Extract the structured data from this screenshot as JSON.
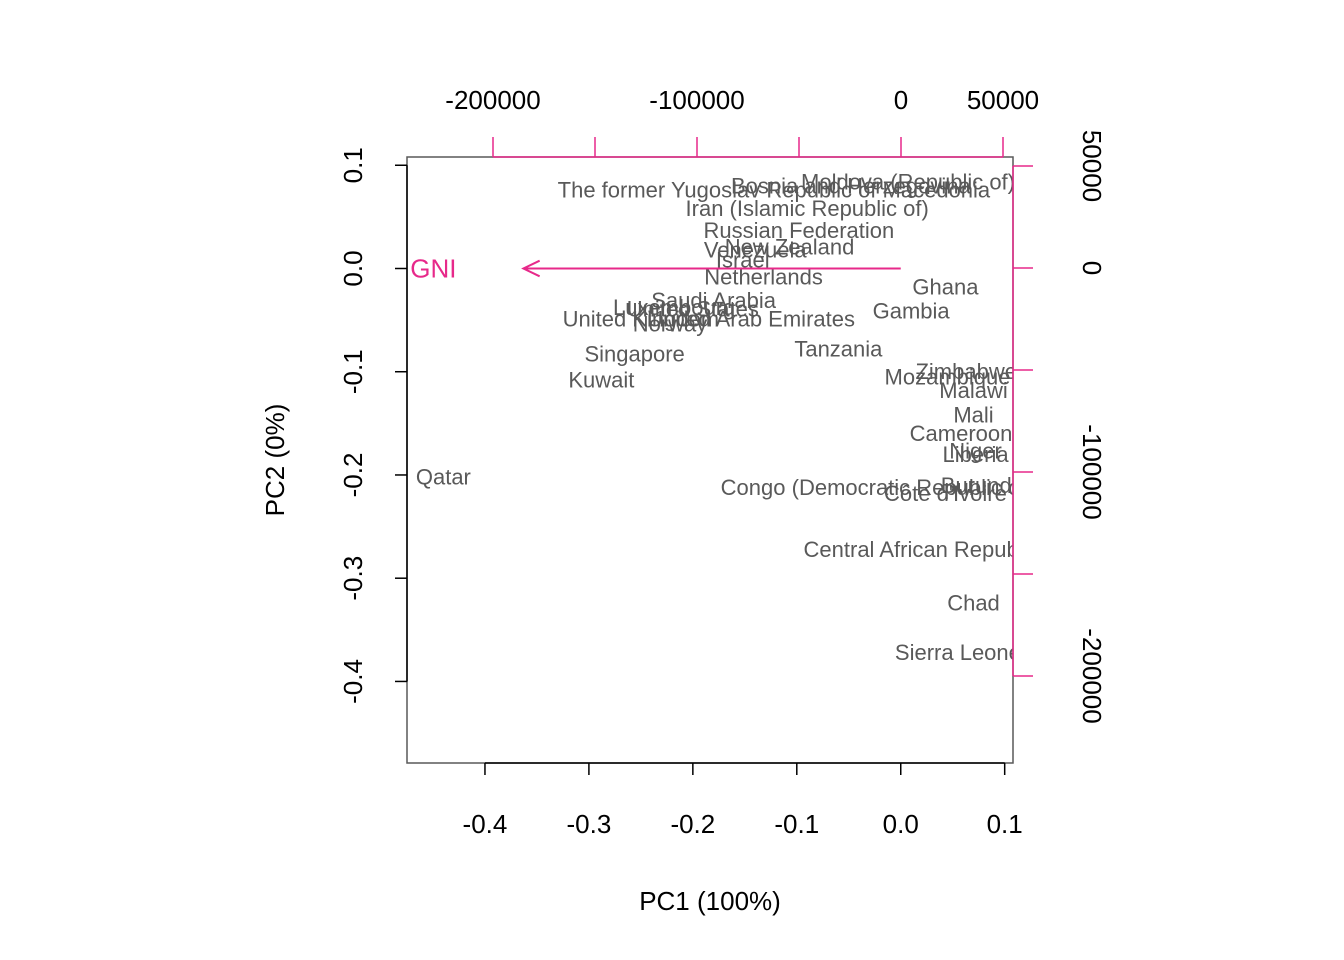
{
  "chart_data": {
    "type": "biplot",
    "xlabel": "PC1 (100%)",
    "ylabel": "PC2 (0%)",
    "xlim": [
      -0.475,
      0.108
    ],
    "ylim": [
      -0.479,
      0.108
    ],
    "x_ticks": [
      -0.4,
      -0.3,
      -0.2,
      -0.1,
      0.0,
      0.1
    ],
    "x_tick_labels": [
      "-0.4",
      "-0.3",
      "-0.2",
      "-0.1",
      "0.0",
      "0.1"
    ],
    "y_ticks": [
      -0.4,
      -0.3,
      -0.2,
      -0.1,
      0.0,
      0.1
    ],
    "y_tick_labels": [
      "-0.4",
      "-0.3",
      "-0.2",
      "-0.1",
      "0.0",
      "0.1"
    ],
    "top_axis": {
      "ticks": [
        -200000,
        -150000,
        -100000,
        -50000,
        0,
        50000
      ],
      "tick_labels": [
        "-200000",
        "",
        "-100000",
        "",
        "0",
        "50000"
      ]
    },
    "right_axis": {
      "ticks": [
        50000,
        0,
        -50000,
        -100000,
        -150000,
        -200000
      ],
      "tick_labels": [
        "50000",
        "0",
        "",
        "-100000",
        "",
        "-200000"
      ]
    },
    "colors": {
      "observations": "#595959",
      "variables": "#e7298a",
      "axes": "#000000"
    },
    "variables": [
      {
        "label": "GNI",
        "x": -0.363,
        "y": 0.0
      }
    ],
    "observations": [
      {
        "label": "Qatar",
        "x": -0.44,
        "y": -0.202
      },
      {
        "label": "Kuwait",
        "x": -0.288,
        "y": -0.108
      },
      {
        "label": "Singapore",
        "x": -0.256,
        "y": -0.083
      },
      {
        "label": "United Kingdom",
        "x": -0.25,
        "y": -0.049
      },
      {
        "label": "Norway",
        "x": -0.222,
        "y": -0.054
      },
      {
        "label": "Luxembourg",
        "x": -0.218,
        "y": -0.038
      },
      {
        "label": "United States",
        "x": -0.2,
        "y": -0.039
      },
      {
        "label": "Saudi Arabia",
        "x": -0.18,
        "y": -0.031
      },
      {
        "label": "United Arab Emirates",
        "x": -0.144,
        "y": -0.049
      },
      {
        "label": "Netherlands",
        "x": -0.132,
        "y": -0.008
      },
      {
        "label": "Venezuela",
        "x": -0.14,
        "y": 0.018
      },
      {
        "label": "Israel",
        "x": -0.152,
        "y": 0.008
      },
      {
        "label": "New Zealand",
        "x": -0.107,
        "y": 0.021
      },
      {
        "label": "The former Yugoslav Republic of Macedonia",
        "x": -0.122,
        "y": 0.076
      },
      {
        "label": "Iran (Islamic Republic of)",
        "x": -0.09,
        "y": 0.058
      },
      {
        "label": "Russian Federation",
        "x": -0.098,
        "y": 0.037
      },
      {
        "label": "Bosnia and Herzegovina",
        "x": -0.048,
        "y": 0.08
      },
      {
        "label": "Moldova (Republic of)",
        "x": 0.007,
        "y": 0.084
      },
      {
        "label": "Tanzania",
        "x": -0.06,
        "y": -0.078
      },
      {
        "label": "Gambia",
        "x": 0.01,
        "y": -0.041
      },
      {
        "label": "Ghana",
        "x": 0.043,
        "y": -0.018
      },
      {
        "label": "Mozambique",
        "x": 0.045,
        "y": -0.105
      },
      {
        "label": "Zimbabwe",
        "x": 0.063,
        "y": -0.1
      },
      {
        "label": "Malawi",
        "x": 0.07,
        "y": -0.118
      },
      {
        "label": "Mali",
        "x": 0.07,
        "y": -0.142
      },
      {
        "label": "Cameroon",
        "x": 0.058,
        "y": -0.16
      },
      {
        "label": "Niger",
        "x": 0.072,
        "y": -0.177
      },
      {
        "label": "Liberia",
        "x": 0.072,
        "y": -0.18
      },
      {
        "label": "Congo (Democratic Republic of the)",
        "x": -0.005,
        "y": -0.212
      },
      {
        "label": "Burundi",
        "x": 0.075,
        "y": -0.21
      },
      {
        "label": "Côte d'Ivoire",
        "x": 0.043,
        "y": -0.218
      },
      {
        "label": "Central African Republic",
        "x": 0.02,
        "y": -0.272
      },
      {
        "label": "Chad",
        "x": 0.07,
        "y": -0.324
      },
      {
        "label": "Sierra Leone",
        "x": 0.055,
        "y": -0.372
      }
    ]
  }
}
